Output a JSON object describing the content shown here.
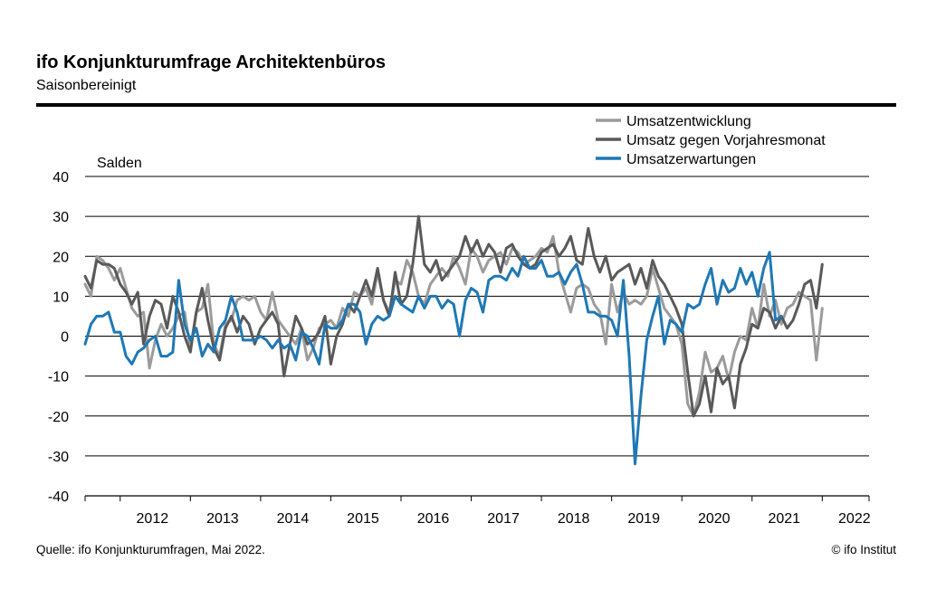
{
  "header": {
    "title": "ifo Konjunkturumfrage Architektenbüros",
    "subtitle": "Saisonbereinigt"
  },
  "footer": {
    "source": "Quelle: ifo Konjunkturumfragen, Mai 2022.",
    "copyright": "© ifo Institut"
  },
  "chart_data": {
    "type": "line",
    "title": "ifo Konjunkturumfrage Architektenbüros",
    "subtitle": "Saisonbereinigt",
    "ylabel": "Salden",
    "xlabel": "",
    "ylim": [
      -40,
      40
    ],
    "yticks": [
      40,
      30,
      20,
      10,
      0,
      -10,
      -20,
      -30,
      -40
    ],
    "x_start": "2011-07",
    "x_end": "2022-05",
    "xlim": [
      "2011-07",
      "2022-09"
    ],
    "years": [
      "2012",
      "2013",
      "2014",
      "2015",
      "2016",
      "2017",
      "2018",
      "2019",
      "2020",
      "2021",
      "2022"
    ],
    "grid": true,
    "legend_position": "top-right",
    "series": [
      {
        "name": "Umsatzentwicklung",
        "color": "#9b9b9b",
        "values": [
          13,
          10,
          20,
          19,
          17,
          14,
          17,
          12,
          7,
          5,
          6,
          -8,
          -1,
          3,
          0,
          2,
          5,
          6,
          -3,
          6,
          7,
          13,
          -2,
          -5,
          3,
          4,
          9,
          10,
          9,
          10,
          6,
          4,
          11,
          4,
          2,
          0,
          -2,
          2,
          -6,
          -3,
          2,
          3,
          4,
          2,
          7,
          5,
          11,
          10,
          12,
          8,
          16,
          9,
          6,
          14,
          13,
          19,
          16,
          10,
          8,
          13,
          15,
          17,
          15,
          20,
          17,
          13,
          22,
          20,
          16,
          19,
          20,
          21,
          18,
          22,
          21,
          18,
          19,
          20,
          22,
          21,
          25,
          16,
          11,
          6,
          12,
          13,
          12,
          8,
          6,
          -2,
          13,
          6,
          11,
          8,
          9,
          8,
          10,
          17,
          12,
          7,
          5,
          3,
          -2,
          -17,
          -20,
          -14,
          -4,
          -9,
          -8,
          -5,
          -11,
          -4,
          0,
          -1,
          7,
          2,
          13,
          5,
          9,
          3,
          7,
          8,
          11,
          10,
          9,
          -6,
          7
        ]
      },
      {
        "name": "Umsatz gegen Vorjahresmonat",
        "color": "#595959",
        "values": [
          15,
          12,
          19,
          18,
          18,
          17,
          13,
          11,
          8,
          11,
          -2,
          5,
          9,
          8,
          2,
          10,
          6,
          0,
          -4,
          6,
          12,
          4,
          -3,
          -6,
          2,
          5,
          1,
          5,
          3,
          -2,
          2,
          4,
          6,
          3,
          -10,
          -2,
          5,
          2,
          -2,
          -1,
          1,
          5,
          -7,
          0,
          3,
          8,
          6,
          10,
          14,
          10,
          17,
          9,
          5,
          16,
          8,
          10,
          18,
          30,
          18,
          16,
          19,
          14,
          16,
          18,
          20,
          25,
          21,
          24,
          20,
          23,
          21,
          16,
          22,
          23,
          20,
          18,
          17,
          18,
          21,
          22,
          23,
          20,
          22,
          25,
          19,
          18,
          27,
          20,
          16,
          20,
          14,
          16,
          17,
          18,
          13,
          17,
          12,
          19,
          15,
          13,
          10,
          7,
          3,
          -9,
          -20,
          -17,
          -10,
          -19,
          -8,
          -12,
          -10,
          -18,
          -7,
          -3,
          3,
          2,
          7,
          6,
          2,
          5,
          2,
          4,
          8,
          13,
          14,
          7,
          18
        ]
      },
      {
        "name": "Umsatzerwartungen",
        "color": "#1f78b4",
        "values": [
          -2,
          3,
          5,
          5,
          6,
          1,
          1,
          -5,
          -7,
          -4,
          -3,
          -1,
          0,
          -5,
          -5,
          -4,
          14,
          3,
          -1,
          2,
          -5,
          -2,
          -4,
          2,
          4,
          10,
          6,
          -1,
          -1,
          -1,
          0,
          -1,
          -3,
          -1,
          -3,
          -2,
          -6,
          1,
          0,
          -3,
          -7,
          3,
          2,
          2,
          4,
          8,
          8,
          6,
          -2,
          3,
          5,
          4,
          5,
          10,
          8,
          7,
          6,
          10,
          7,
          10,
          10,
          7,
          9,
          8,
          0,
          9,
          12,
          11,
          6,
          14,
          15,
          15,
          14,
          17,
          15,
          20,
          17,
          17,
          19,
          15,
          15,
          16,
          13,
          16,
          18,
          13,
          6,
          6,
          5,
          5,
          4,
          0,
          14,
          -5,
          -32,
          -15,
          -1,
          5,
          10,
          -2,
          4,
          3,
          1,
          8,
          7,
          8,
          13,
          17,
          8,
          14,
          11,
          12,
          17,
          13,
          16,
          10,
          17,
          21,
          4,
          5
        ]
      }
    ]
  }
}
